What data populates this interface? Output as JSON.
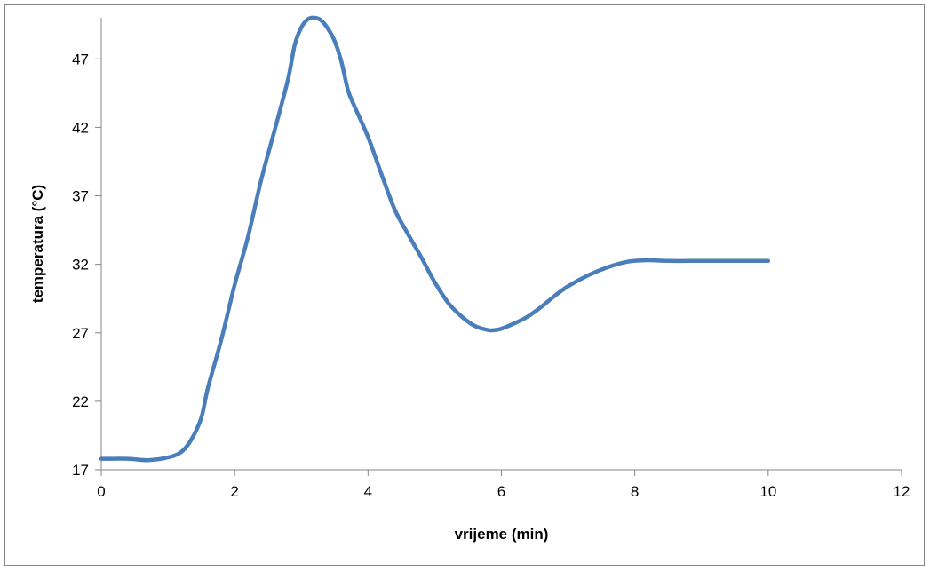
{
  "chart_data": {
    "type": "line",
    "title": "",
    "xlabel": "vrijeme (min)",
    "ylabel": "temperatura (°C)",
    "xlim": [
      0,
      12
    ],
    "ylim": [
      17,
      50
    ],
    "x_ticks": [
      "0",
      "2",
      "4",
      "6",
      "8",
      "10",
      "12"
    ],
    "y_ticks": [
      "17",
      "22",
      "27",
      "32",
      "37",
      "42",
      "47"
    ],
    "grid": false,
    "legend": "none",
    "line_color": "#4a7ebb",
    "series": [
      {
        "x": [
          0,
          0.4,
          0.7,
          1.0,
          1.2,
          1.35,
          1.5,
          1.6,
          1.8,
          2.0,
          2.2,
          2.4,
          2.6,
          2.8,
          2.9,
          3.0,
          3.1,
          3.2,
          3.3,
          3.4,
          3.5,
          3.6,
          3.7,
          3.8,
          4.0,
          4.2,
          4.4,
          4.6,
          4.8,
          5.0,
          5.2,
          5.4,
          5.6,
          5.8,
          5.9,
          6.0,
          6.2,
          6.4,
          6.6,
          6.8,
          7.0,
          7.3,
          7.6,
          7.9,
          8.2,
          8.5,
          9.0,
          9.5,
          10.0
        ],
        "y": [
          17.8,
          17.8,
          17.7,
          17.9,
          18.3,
          19.2,
          20.8,
          23.0,
          26.5,
          30.5,
          34.0,
          38.2,
          41.8,
          45.5,
          48.0,
          49.3,
          49.9,
          50.0,
          49.8,
          49.2,
          48.3,
          46.8,
          44.7,
          43.5,
          41.3,
          38.6,
          36.0,
          34.2,
          32.5,
          30.7,
          29.2,
          28.2,
          27.5,
          27.2,
          27.2,
          27.3,
          27.7,
          28.2,
          28.9,
          29.7,
          30.4,
          31.2,
          31.8,
          32.2,
          32.3,
          32.25,
          32.25,
          32.25,
          32.25
        ]
      }
    ]
  }
}
